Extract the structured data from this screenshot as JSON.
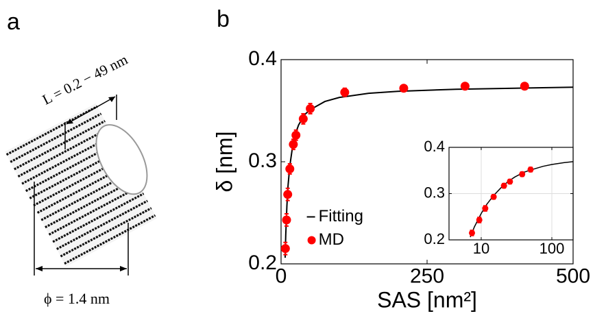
{
  "panel_labels": [
    "a",
    "b"
  ],
  "diagram": {
    "length_label": "L = 0.2 − 49 nm",
    "diameter_label": "ϕ = 1.4 nm"
  },
  "chart_data": [
    {
      "type": "scatter",
      "xlabel": "SAS [nm²]",
      "ylabel": "δ [nm]",
      "xlim": [
        0,
        500
      ],
      "ylim": [
        0.2,
        0.4
      ],
      "xticks": [
        0,
        250,
        500
      ],
      "yticks": [
        0.2,
        0.3,
        0.4
      ],
      "legend": "center",
      "series": [
        {
          "name": "Fitting",
          "mode": "line",
          "color": "#000000",
          "x": [
            7,
            8,
            10,
            12,
            15,
            20,
            25,
            30,
            40,
            50,
            75,
            100,
            150,
            200,
            300,
            400,
            500
          ],
          "values": [
            0.206,
            0.228,
            0.257,
            0.277,
            0.296,
            0.316,
            0.328,
            0.336,
            0.346,
            0.351,
            0.359,
            0.363,
            0.367,
            0.369,
            0.371,
            0.372,
            0.373
          ]
        },
        {
          "name": "MD",
          "mode": "markers",
          "color": "#ff0000",
          "x": [
            7.4,
            9.4,
            11.4,
            15,
            21,
            25.5,
            38,
            50,
            109,
            210,
            315,
            417
          ],
          "values": [
            0.215,
            0.243,
            0.268,
            0.293,
            0.317,
            0.326,
            0.342,
            0.352,
            0.368,
            0.372,
            0.374,
            0.374
          ],
          "errors": [
            0.006,
            0.006,
            0.006,
            0.005,
            0.005,
            0.005,
            0.005,
            0.005,
            0.004,
            0.003,
            0.003,
            0.003
          ]
        }
      ]
    },
    {
      "type": "scatter",
      "xscale": "log",
      "grid": true,
      "xlim": [
        3.5,
        200
      ],
      "ylim": [
        0.2,
        0.4
      ],
      "xticks": [
        10,
        100
      ],
      "yticks": [
        0.2,
        0.3,
        0.4
      ],
      "series": [
        {
          "mode": "line",
          "color": "#000000",
          "x": [
            7,
            8,
            10,
            12,
            15,
            20,
            25,
            30,
            40,
            50,
            75,
            100,
            150,
            200
          ],
          "values": [
            0.206,
            0.228,
            0.257,
            0.277,
            0.296,
            0.316,
            0.328,
            0.336,
            0.346,
            0.351,
            0.359,
            0.363,
            0.367,
            0.369
          ]
        },
        {
          "mode": "markers",
          "color": "#ff0000",
          "x": [
            7.4,
            9.4,
            11.4,
            15,
            21,
            25.5,
            38,
            50
          ],
          "values": [
            0.215,
            0.243,
            0.268,
            0.293,
            0.317,
            0.326,
            0.342,
            0.352
          ],
          "errors": [
            0.006,
            0.006,
            0.006,
            0.005,
            0.005,
            0.005,
            0.005,
            0.005
          ]
        }
      ]
    }
  ]
}
